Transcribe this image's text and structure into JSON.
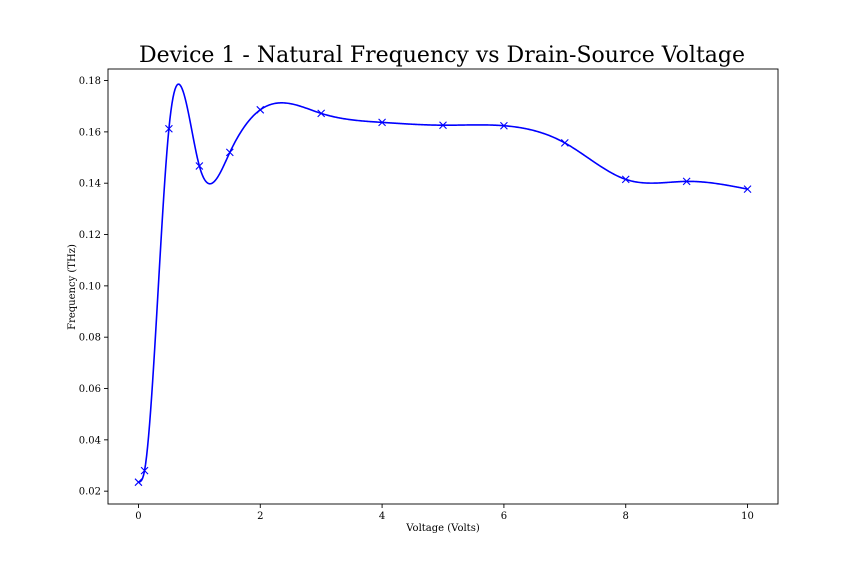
{
  "chart_data": {
    "type": "line",
    "title": "Device 1 - Natural Frequency vs Drain-Source Voltage",
    "xlabel": "Voltage (Volts)",
    "ylabel": "Frequency (THz)",
    "xlim": [
      -0.5,
      10.5
    ],
    "ylim": [
      0.015,
      0.1845
    ],
    "xticks": [
      0,
      2,
      4,
      6,
      8,
      10
    ],
    "xtick_labels": [
      "0",
      "2",
      "4",
      "6",
      "8",
      "10"
    ],
    "yticks": [
      0.02,
      0.04,
      0.06,
      0.08,
      0.1,
      0.12,
      0.14,
      0.16,
      0.18
    ],
    "ytick_labels": [
      "0.02",
      "0.04",
      "0.06",
      "0.08",
      "0.10",
      "0.12",
      "0.14",
      "0.16",
      "0.18"
    ],
    "grid": false,
    "color": "#0000ff",
    "series": [
      {
        "marker": "x",
        "x": [
          0,
          0.1,
          0.5,
          1.0,
          1.5,
          2.0,
          3.0,
          4.0,
          5.0,
          6.0,
          7.0,
          8.0,
          9.0,
          10.0
        ],
        "y": [
          0.0235,
          0.028,
          0.1612,
          0.1467,
          0.152,
          0.1686,
          0.1672,
          0.1637,
          0.1626,
          0.1624,
          0.1557,
          0.1415,
          0.1407,
          0.1377
        ]
      }
    ]
  }
}
